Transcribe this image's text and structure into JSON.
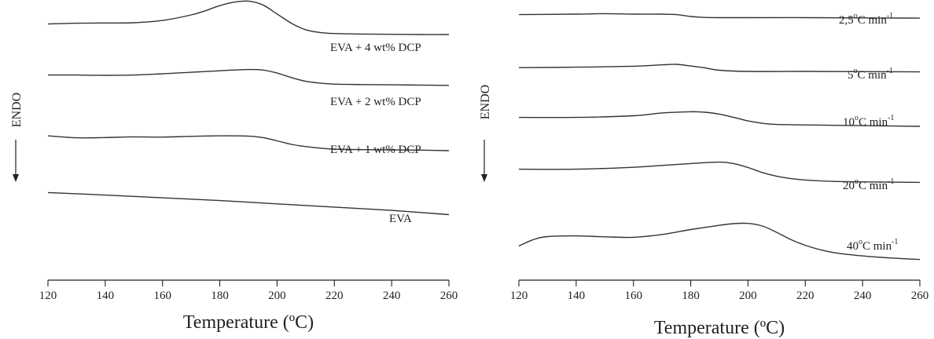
{
  "chart_data": [
    {
      "type": "line",
      "xlabel": "Temperature (ºC)",
      "ylabel": "ENDO",
      "xlim": [
        120,
        260
      ],
      "xticks": [
        120,
        140,
        160,
        180,
        200,
        220,
        240,
        260
      ],
      "series": [
        {
          "name": "EVA + 4 wt% DCP",
          "x": [
            120,
            130,
            140,
            150,
            160,
            170,
            175,
            180,
            185,
            190,
            195,
            200,
            205,
            210,
            215,
            220,
            230,
            240,
            250,
            260
          ],
          "y": [
            0.92,
            0.95,
            0.96,
            0.97,
            1.06,
            1.28,
            1.45,
            1.65,
            1.79,
            1.83,
            1.68,
            1.32,
            0.95,
            0.69,
            0.58,
            0.54,
            0.52,
            0.51,
            0.5,
            0.5
          ]
        },
        {
          "name": "EVA + 2 wt% DCP",
          "x": [
            120,
            130,
            140,
            150,
            160,
            170,
            180,
            185,
            190,
            195,
            200,
            205,
            210,
            215,
            220,
            230,
            240,
            250,
            260
          ],
          "y": [
            0.98,
            0.98,
            0.97,
            0.98,
            1.03,
            1.09,
            1.15,
            1.18,
            1.2,
            1.18,
            1.06,
            0.88,
            0.73,
            0.66,
            0.62,
            0.6,
            0.59,
            0.58,
            0.57
          ]
        },
        {
          "name": "EVA + 1 wt% DCP",
          "x": [
            120,
            130,
            140,
            150,
            160,
            170,
            180,
            190,
            195,
            200,
            205,
            210,
            215,
            220,
            230,
            240,
            250,
            260
          ],
          "y": [
            1.06,
            0.98,
            0.99,
            1.02,
            1.01,
            1.04,
            1.06,
            1.05,
            0.99,
            0.86,
            0.72,
            0.63,
            0.57,
            0.53,
            0.51,
            0.5,
            0.49,
            0.47
          ]
        },
        {
          "name": "EVA",
          "x": [
            120,
            140,
            160,
            180,
            200,
            220,
            240,
            260
          ],
          "y": [
            1.02,
            0.92,
            0.81,
            0.7,
            0.57,
            0.44,
            0.31,
            0.14
          ]
        }
      ]
    },
    {
      "type": "line",
      "xlabel": "Temperature (ºC)",
      "ylabel": "ENDO",
      "xlim": [
        120,
        260
      ],
      "xticks": [
        120,
        140,
        160,
        180,
        200,
        220,
        240,
        260
      ],
      "series": [
        {
          "name": "2,5ºC min-1",
          "x": [
            120,
            140,
            150,
            160,
            170,
            175,
            180,
            185,
            190,
            200,
            220,
            240,
            260
          ],
          "y": [
            0.98,
            1.0,
            1.02,
            1.0,
            1.0,
            0.98,
            0.9,
            0.86,
            0.85,
            0.85,
            0.85,
            0.84,
            0.83
          ]
        },
        {
          "name": "5ºC min-1",
          "x": [
            120,
            140,
            160,
            170,
            175,
            180,
            185,
            190,
            200,
            220,
            240,
            260
          ],
          "y": [
            0.86,
            0.88,
            0.92,
            0.98,
            1.0,
            0.93,
            0.85,
            0.75,
            0.7,
            0.7,
            0.69,
            0.68
          ]
        },
        {
          "name": "10ºC min-1",
          "x": [
            120,
            140,
            160,
            170,
            180,
            185,
            190,
            195,
            200,
            205,
            210,
            220,
            240,
            260
          ],
          "y": [
            0.88,
            0.88,
            0.95,
            1.07,
            1.12,
            1.1,
            1.02,
            0.88,
            0.73,
            0.63,
            0.58,
            0.56,
            0.53,
            0.5
          ]
        },
        {
          "name": "20ºC min-1",
          "x": [
            120,
            140,
            160,
            170,
            180,
            190,
            195,
            200,
            205,
            210,
            215,
            220,
            230,
            240,
            260
          ],
          "y": [
            0.88,
            0.88,
            0.96,
            1.04,
            1.12,
            1.18,
            1.12,
            0.95,
            0.74,
            0.58,
            0.48,
            0.42,
            0.36,
            0.34,
            0.32
          ]
        },
        {
          "name": "40ºC min-1",
          "x": [
            120,
            125,
            130,
            140,
            150,
            160,
            170,
            180,
            190,
            195,
            200,
            205,
            210,
            215,
            220,
            225,
            230,
            240,
            250,
            260
          ],
          "y": [
            0.55,
            0.82,
            0.95,
            0.98,
            0.94,
            0.92,
            1.04,
            1.25,
            1.43,
            1.5,
            1.51,
            1.4,
            1.13,
            0.82,
            0.58,
            0.4,
            0.27,
            0.13,
            0.04,
            -0.02
          ]
        }
      ]
    }
  ],
  "panels": [
    {
      "ylabel": "ENDO",
      "xlabel": "Temperature (ºC)",
      "labels": [
        "EVA + 4 wt% DCP",
        "EVA + 2 wt% DCP",
        "EVA + 1 wt% DCP",
        "EVA"
      ]
    },
    {
      "ylabel": "ENDO",
      "xlabel": "Temperature (ºC)",
      "labels": [
        {
          "main": "2,5",
          "deg": "o",
          "rest": "C min",
          "sup": "-1"
        },
        {
          "main": "5",
          "deg": "o",
          "rest": "C min",
          "sup": "-1"
        },
        {
          "main": "10",
          "deg": "o",
          "rest": "C min",
          "sup": "-1"
        },
        {
          "main": "20",
          "deg": "o",
          "rest": "C min",
          "sup": "-1"
        },
        {
          "main": "40",
          "deg": "o",
          "rest": "C min",
          "sup": "-1"
        }
      ]
    }
  ]
}
